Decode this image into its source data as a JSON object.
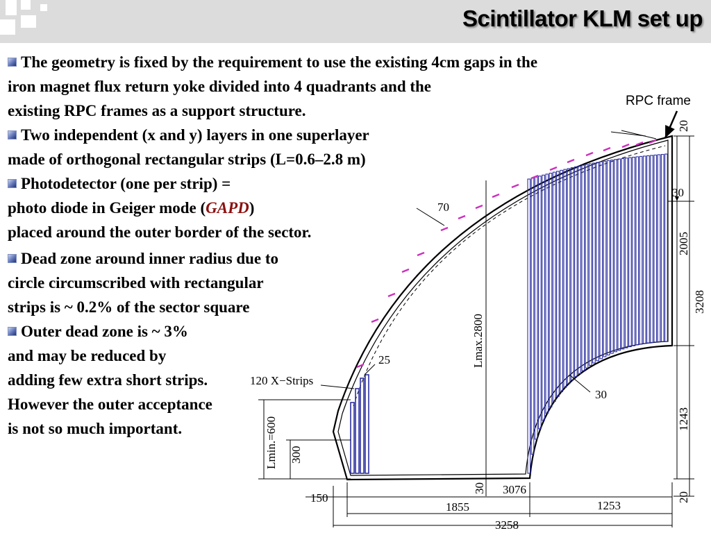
{
  "slide": {
    "title": "Scintillator KLM set up",
    "bullets": [
      {
        "lines": [
          "The geometry is fixed by the requirement to use the existing 4cm gaps in the",
          "iron magnet flux return yoke divided into 4 quadrants and the",
          "existing RPC frames as a support structure."
        ]
      },
      {
        "lines": [
          "Two independent (x and y) layers in one superlayer",
          "made of orthogonal rectangular strips (L=0.6–2.8 m)"
        ]
      },
      {
        "line1": "Photodetector (one per strip) =",
        "line2_prefix": "photo diode in Geiger mode (",
        "line2_gapd": "GAPD",
        "line2_suffix": ")",
        "line3": "placed around the outer border of the sector."
      },
      {
        "lines": [
          "Dead zone around inner radius due to",
          "circle circumscribed with rectangular",
          "strips is ~ 0.2% of the sector square"
        ]
      },
      {
        "lines": [
          "Outer dead zone is ~ 3%",
          "and may be reduced by",
          "adding few extra short strips.",
          "However the outer acceptance",
          "is not so much important."
        ]
      }
    ]
  },
  "diagram": {
    "rpc_frame_label": "RPC frame",
    "strips_label": "120 X−Strips",
    "dimensions": {
      "d20_top": "20",
      "d30_right": "30",
      "d2005": "2005",
      "d3208": "3208",
      "d1243": "1243",
      "d20_bottom": "20",
      "d70": "70",
      "d25": "25",
      "d30_inner": "30",
      "lmax": "Lmax.2800",
      "lmin": "Lmin.=600",
      "d300": "300",
      "d30_bottom": "30",
      "d150": "150",
      "d3076": "3076",
      "d1855": "1855",
      "d1253": "1253",
      "d3258": "3258"
    },
    "colors": {
      "strips": "#2b2fa0",
      "markers": "#cc2fbd",
      "lines": "#000000",
      "title_shadow": "#8a8a8a",
      "gapd": "#8b1010"
    }
  }
}
